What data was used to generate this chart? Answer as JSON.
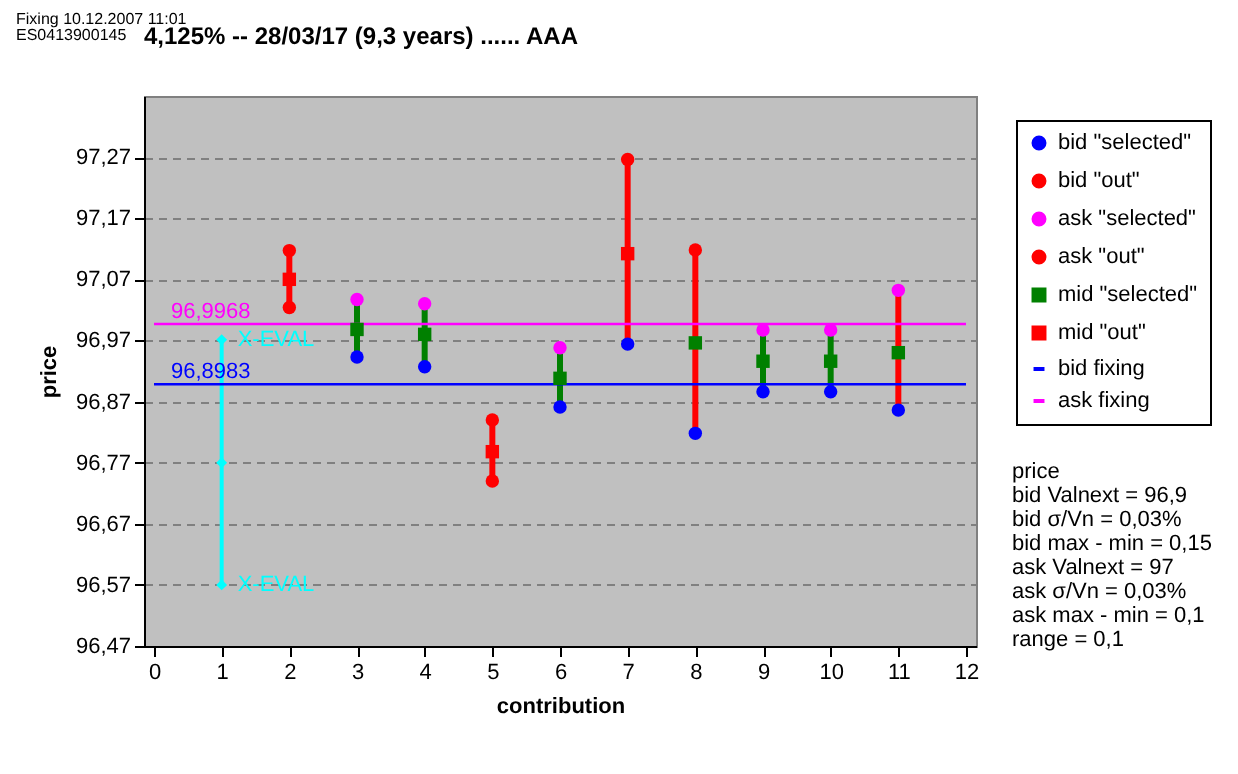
{
  "chart_data": {
    "type": "scatter",
    "title": "4,125% -- 28/03/17 (9,3 years) ...... AAA",
    "xlabel": "contribution",
    "ylabel": "price",
    "xlim": [
      0,
      12
    ],
    "xticks": [
      0,
      1,
      2,
      3,
      4,
      5,
      6,
      7,
      8,
      9,
      10,
      11,
      12
    ],
    "ylim": [
      96.47,
      97.37
    ],
    "yticks": [
      {
        "value": 96.47,
        "label": "96,47"
      },
      {
        "value": 96.57,
        "label": "96,57"
      },
      {
        "value": 96.67,
        "label": "96,67"
      },
      {
        "value": 96.77,
        "label": "96,77"
      },
      {
        "value": 96.87,
        "label": "96,87"
      },
      {
        "value": 96.97,
        "label": "96,97"
      },
      {
        "value": 97.07,
        "label": "97,07"
      },
      {
        "value": 97.17,
        "label": "97,17"
      },
      {
        "value": 97.27,
        "label": "97,27"
      }
    ],
    "grid": "y",
    "legend": "right",
    "series": [
      {
        "type": "bar",
        "x": [
          2,
          3,
          4,
          5,
          6,
          7,
          8,
          9,
          10,
          11
        ],
        "base": [
          97.024,
          96.943,
          96.927,
          96.74,
          96.861,
          96.964,
          96.818,
          96.886,
          96.886,
          96.856
        ],
        "values": [
          0.093,
          0.094,
          0.103,
          0.1,
          0.097,
          0.302,
          0.3,
          0.101,
          0.101,
          0.196
        ],
        "colors": [
          "#ff0000",
          "#008000",
          "#008000",
          "#ff0000",
          "#008000",
          "#ff0000",
          "#ff0000",
          "#008000",
          "#008000",
          "#ff0000"
        ]
      },
      {
        "type": "line",
        "marker": "diamond",
        "color": "#00ffff",
        "x": [
          1,
          1,
          1
        ],
        "values": [
          96.971,
          96.77,
          96.57
        ],
        "value_labels": [
          "X-EVAL",
          null,
          "X-EVAL"
        ]
      },
      {
        "name": "bid \"selected\"",
        "marker": "circle",
        "color": "#0000ff",
        "x": [
          3,
          4,
          6,
          7,
          8,
          9,
          10,
          11
        ],
        "values": [
          96.943,
          96.927,
          96.861,
          96.964,
          96.818,
          96.886,
          96.886,
          96.856
        ]
      },
      {
        "name": "bid \"out\"",
        "marker": "circle",
        "color": "#ff0000",
        "x": [
          2,
          5
        ],
        "values": [
          97.024,
          96.74
        ]
      },
      {
        "name": "ask \"selected\"",
        "marker": "circle",
        "color": "#ff00ff",
        "x": [
          3,
          4,
          6,
          9,
          10,
          11
        ],
        "values": [
          97.037,
          97.03,
          96.958,
          96.987,
          96.987,
          97.052
        ]
      },
      {
        "name": "ask \"out\"",
        "marker": "circle",
        "color": "#ff0000",
        "x": [
          2,
          5,
          7,
          8
        ],
        "values": [
          97.117,
          96.84,
          97.266,
          97.118
        ]
      },
      {
        "name": "mid \"selected\"",
        "marker": "square",
        "color": "#008000",
        "x": [
          3,
          4,
          6,
          8,
          9,
          10,
          11
        ],
        "values": [
          96.988,
          96.98,
          96.908,
          96.966,
          96.936,
          96.936,
          96.95
        ]
      },
      {
        "name": "mid \"out\"",
        "marker": "square",
        "color": "#ff0000",
        "x": [
          2,
          5,
          7
        ],
        "values": [
          97.07,
          96.788,
          97.112
        ]
      },
      {
        "type": "line",
        "name": "bid fixing",
        "color": "#0000ff",
        "x": [
          0,
          12
        ],
        "values": [
          96.8983,
          96.8983
        ]
      },
      {
        "type": "line",
        "name": "ask fixing",
        "color": "#ff00ff",
        "x": [
          0,
          12
        ],
        "values": [
          96.9968,
          96.9968
        ]
      }
    ],
    "annotations": [
      "Fixing 10.12.2007 11:01",
      "ES0413900145",
      {
        "text": "96,9968",
        "x": 0.25,
        "y": 96.9968
      },
      {
        "text": "96,8983",
        "x": 0.25,
        "y": 96.8983
      },
      "price",
      "bid Valnext = 96,9",
      "bid σ/Vn = 0,03%",
      "bid max - min = 0,15",
      "ask Valnext = 97",
      "ask σ/Vn = 0,03%",
      "ask max - min = 0,1",
      "range = 0,1"
    ]
  }
}
